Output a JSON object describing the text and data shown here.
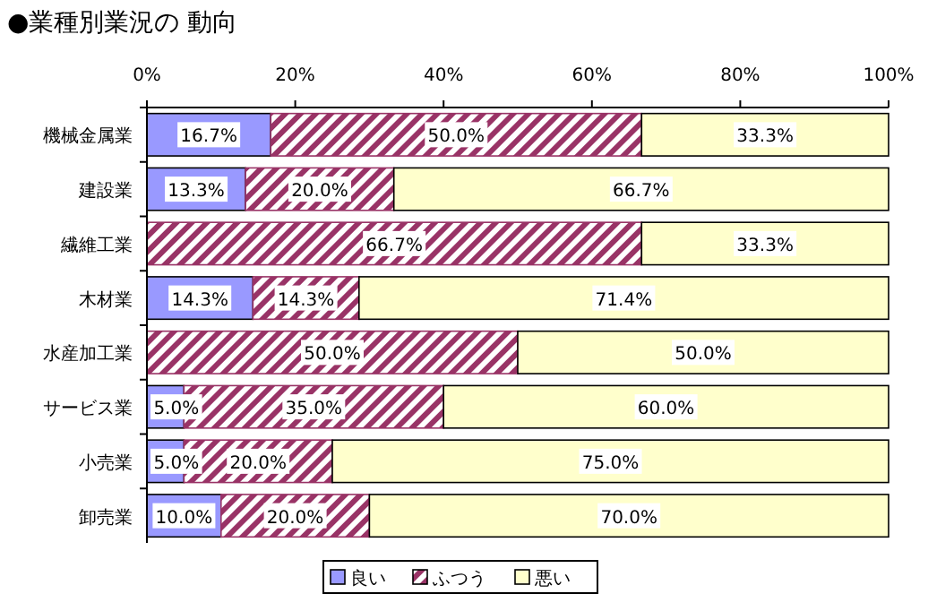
{
  "chart_data": {
    "type": "bar",
    "orientation": "horizontal",
    "stacked": true,
    "title": "●業種別業況の 動向",
    "categories": [
      "機械金属業",
      "建設業",
      "繊維工業",
      "木材業",
      "水産加工業",
      "サービス業",
      "小売業",
      "卸売業"
    ],
    "series": [
      {
        "name": "良い",
        "color": "#9999ff",
        "values": [
          16.7,
          13.3,
          0,
          14.3,
          0,
          5.0,
          5.0,
          10.0
        ],
        "value_labels": [
          "16.7%",
          "13.3%",
          null,
          "14.3%",
          null,
          "5.0%",
          "5.0%",
          "10.0%"
        ]
      },
      {
        "name": "ふつう",
        "color": "#993366",
        "values": [
          50.0,
          20.0,
          66.7,
          14.3,
          50.0,
          35.0,
          20.0,
          20.0
        ],
        "value_labels": [
          "50.0%",
          "20.0%",
          "66.7%",
          "14.3%",
          "50.0%",
          "35.0%",
          "20.0%",
          "20.0%"
        ]
      },
      {
        "name": "悪い",
        "color": "#ffffcc",
        "values": [
          33.3,
          66.7,
          33.3,
          71.4,
          50.0,
          60.0,
          75.0,
          70.0
        ],
        "value_labels": [
          "33.3%",
          "66.7%",
          "33.3%",
          "71.4%",
          "50.0%",
          "60.0%",
          "75.0%",
          "70.0%"
        ]
      }
    ],
    "xlim": [
      0,
      100
    ],
    "xticks": [
      {
        "value": 0,
        "label": "0%"
      },
      {
        "value": 20,
        "label": "20%"
      },
      {
        "value": 40,
        "label": "40%"
      },
      {
        "value": 60,
        "label": "60%"
      },
      {
        "value": 80,
        "label": "80%"
      },
      {
        "value": 100,
        "label": "100%"
      }
    ],
    "legend": "bottom"
  }
}
